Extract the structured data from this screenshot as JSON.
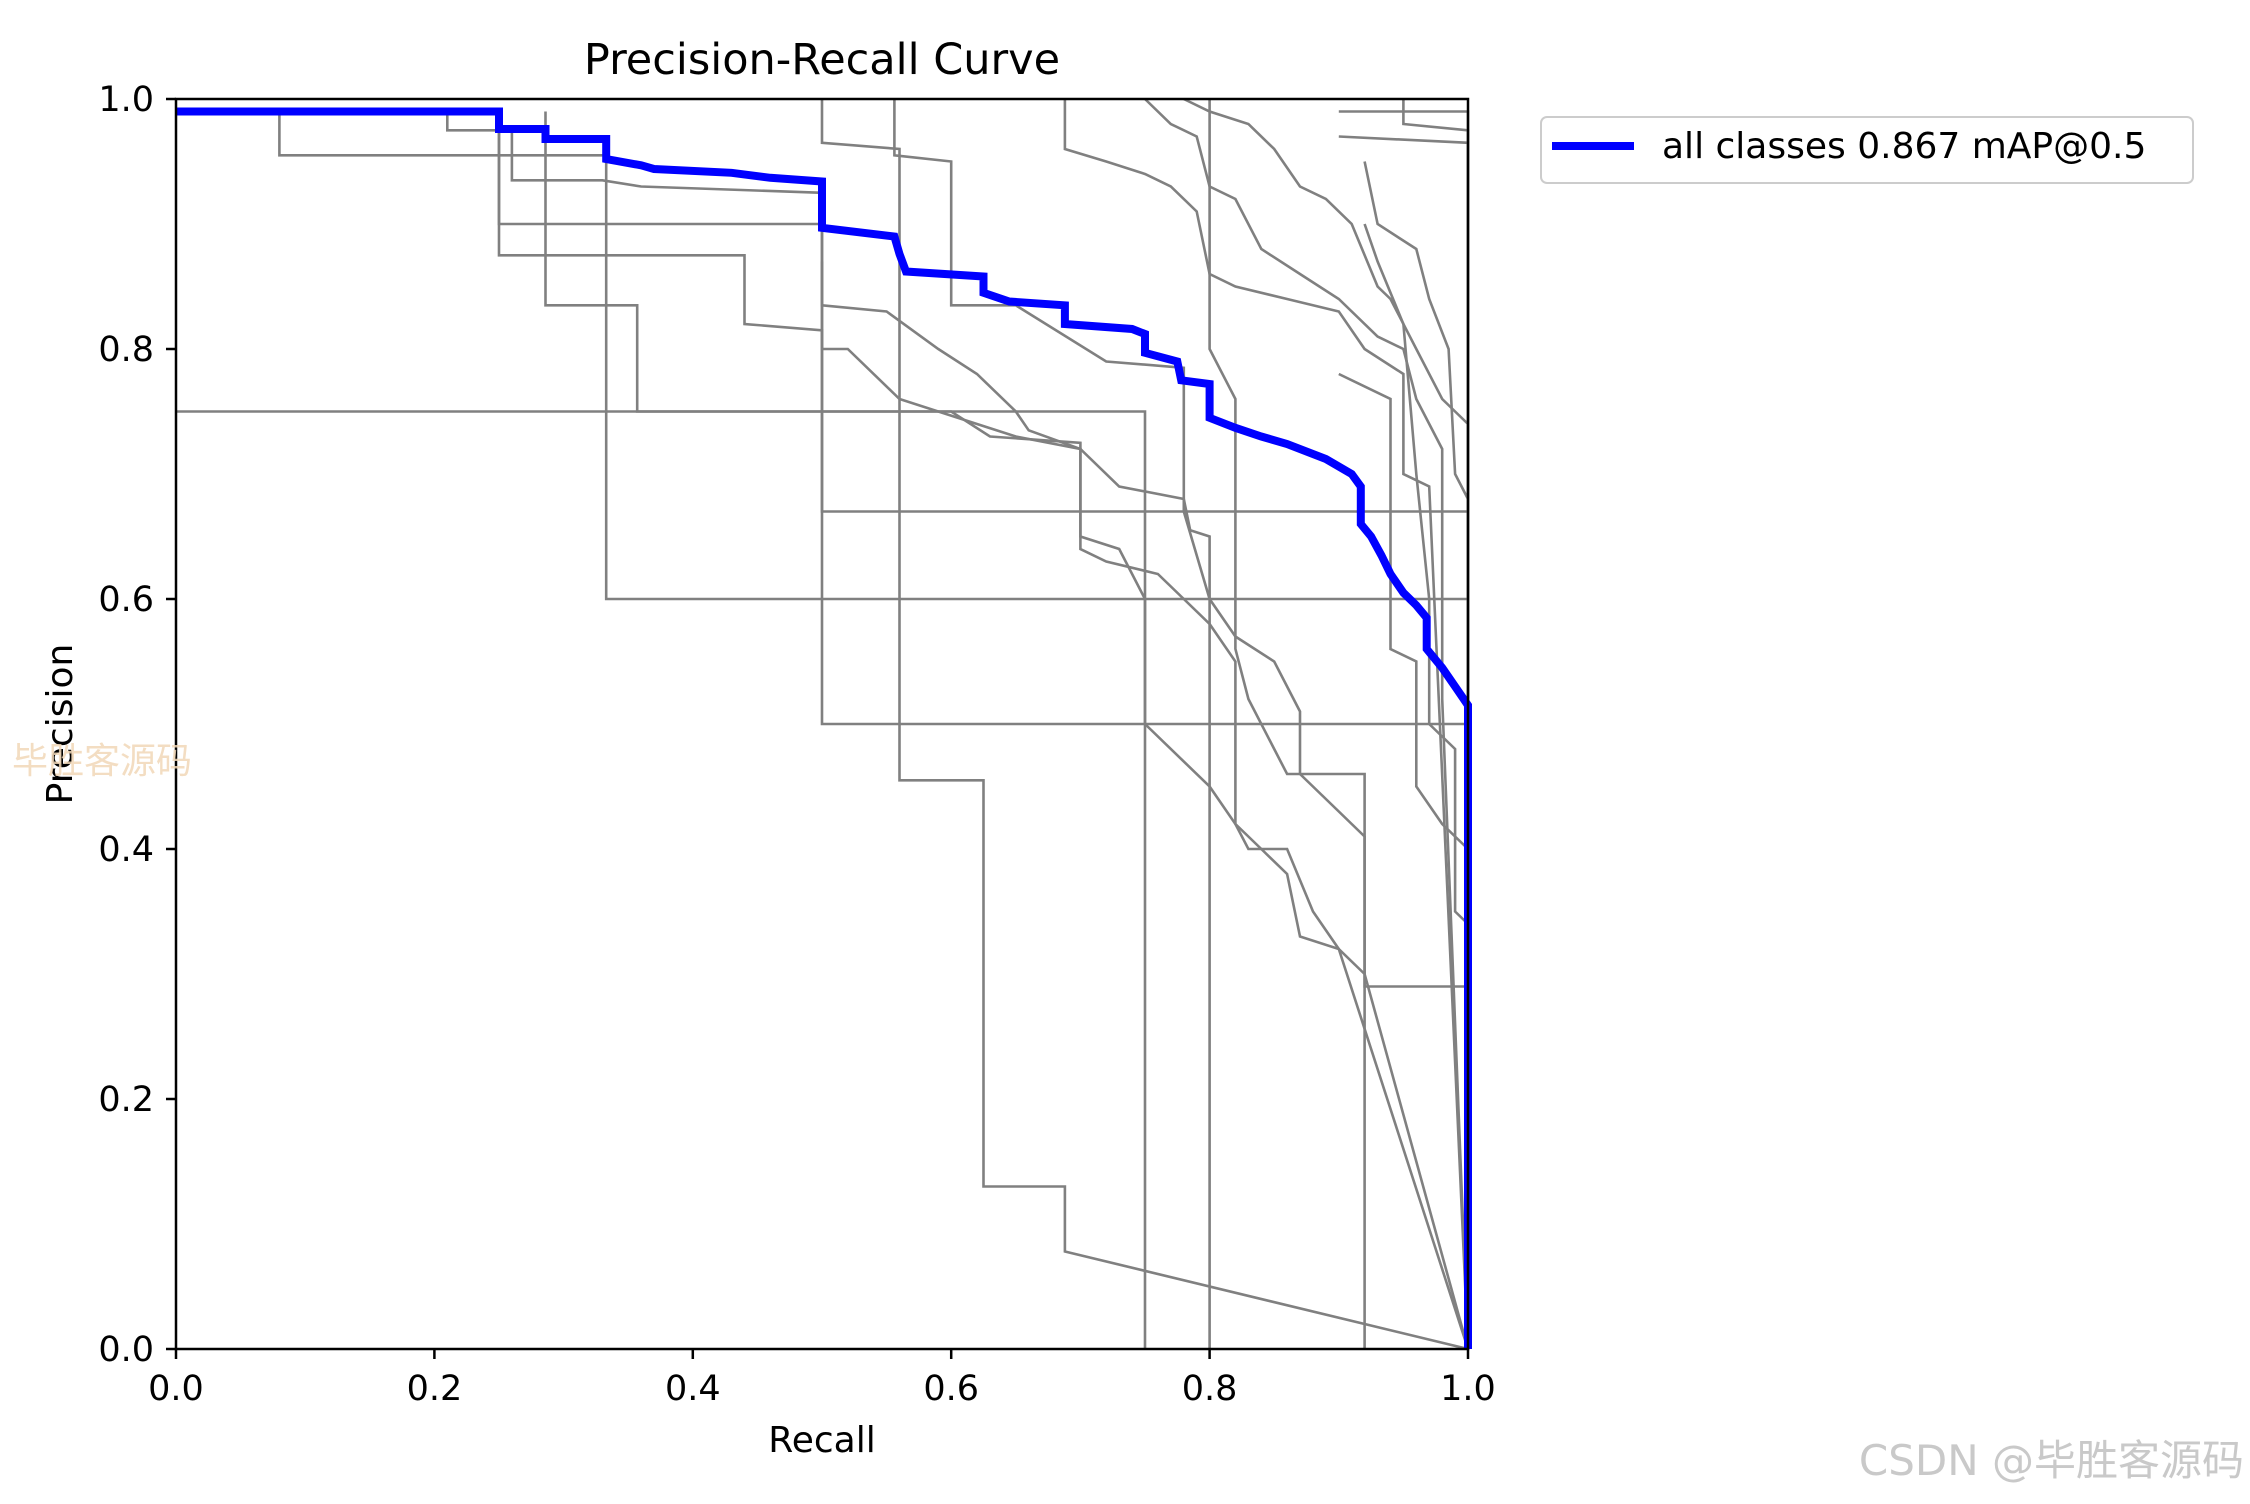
{
  "chart_data": {
    "type": "line",
    "title": "Precision-Recall Curve",
    "xlabel": "Recall",
    "ylabel": "Precision",
    "xlim": [
      0,
      1
    ],
    "ylim": [
      0,
      1
    ],
    "x_ticks": [
      "0.0",
      "0.2",
      "0.4",
      "0.6",
      "0.8",
      "1.0"
    ],
    "y_ticks": [
      "0.0",
      "0.2",
      "0.4",
      "0.6",
      "0.8",
      "1.0"
    ],
    "grid": false,
    "legend": {
      "position": "outside-top-right",
      "entries": [
        "all classes 0.867 mAP@0.5"
      ]
    },
    "main_series": {
      "name": "all classes 0.867 mAP@0.5",
      "color": "#0000ff",
      "points": [
        [
          0.0,
          0.99
        ],
        [
          0.25,
          0.99
        ],
        [
          0.25,
          0.976
        ],
        [
          0.286,
          0.976
        ],
        [
          0.286,
          0.968
        ],
        [
          0.333,
          0.968
        ],
        [
          0.333,
          0.952
        ],
        [
          0.36,
          0.947
        ],
        [
          0.37,
          0.944
        ],
        [
          0.43,
          0.941
        ],
        [
          0.46,
          0.937
        ],
        [
          0.5,
          0.934
        ],
        [
          0.5,
          0.897
        ],
        [
          0.556,
          0.89
        ],
        [
          0.56,
          0.876
        ],
        [
          0.565,
          0.862
        ],
        [
          0.625,
          0.858
        ],
        [
          0.625,
          0.845
        ],
        [
          0.645,
          0.838
        ],
        [
          0.688,
          0.835
        ],
        [
          0.688,
          0.82
        ],
        [
          0.74,
          0.816
        ],
        [
          0.75,
          0.812
        ],
        [
          0.75,
          0.797
        ],
        [
          0.775,
          0.79
        ],
        [
          0.778,
          0.775
        ],
        [
          0.8,
          0.772
        ],
        [
          0.8,
          0.745
        ],
        [
          0.82,
          0.737
        ],
        [
          0.84,
          0.73
        ],
        [
          0.86,
          0.724
        ],
        [
          0.89,
          0.712
        ],
        [
          0.91,
          0.7
        ],
        [
          0.917,
          0.69
        ],
        [
          0.917,
          0.66
        ],
        [
          0.925,
          0.65
        ],
        [
          0.933,
          0.635
        ],
        [
          0.94,
          0.62
        ],
        [
          0.95,
          0.605
        ],
        [
          0.96,
          0.595
        ],
        [
          0.968,
          0.585
        ],
        [
          0.968,
          0.56
        ],
        [
          0.98,
          0.545
        ],
        [
          0.99,
          0.53
        ],
        [
          1.0,
          0.515
        ],
        [
          1.0,
          0.0
        ]
      ]
    },
    "background_series": {
      "color": "#808080",
      "series": [
        [
          [
            0,
            0.99
          ],
          [
            0.08,
            0.99
          ],
          [
            0.08,
            0.955
          ],
          [
            0.333,
            0.955
          ],
          [
            0.333,
            0.6
          ],
          [
            1.0,
            0.6
          ],
          [
            1.0,
            0.0
          ]
        ],
        [
          [
            0,
            0.75
          ],
          [
            0.75,
            0.75
          ],
          [
            0.75,
            0.0
          ]
        ],
        [
          [
            0,
            0.99
          ],
          [
            0.21,
            0.99
          ],
          [
            0.21,
            0.975
          ],
          [
            0.26,
            0.975
          ],
          [
            0.26,
            0.935
          ],
          [
            0.33,
            0.935
          ],
          [
            0.36,
            0.93
          ],
          [
            0.5,
            0.925
          ],
          [
            0.5,
            0.5
          ],
          [
            1.0,
            0.5
          ],
          [
            1.0,
            0.0
          ]
        ],
        [
          [
            0.25,
            0.99
          ],
          [
            0.25,
            0.9
          ],
          [
            0.5,
            0.9
          ],
          [
            0.5,
            0.835
          ],
          [
            0.55,
            0.83
          ],
          [
            0.59,
            0.8
          ],
          [
            0.62,
            0.78
          ],
          [
            0.65,
            0.75
          ],
          [
            0.66,
            0.735
          ],
          [
            0.7,
            0.72
          ],
          [
            0.73,
            0.69
          ],
          [
            0.78,
            0.68
          ],
          [
            0.785,
            0.655
          ],
          [
            0.8,
            0.65
          ],
          [
            0.8,
            0.0
          ]
        ],
        [
          [
            0.25,
            0.99
          ],
          [
            0.25,
            0.875
          ],
          [
            0.44,
            0.875
          ],
          [
            0.44,
            0.82
          ],
          [
            0.5,
            0.815
          ],
          [
            0.5,
            0.67
          ],
          [
            1.0,
            0.67
          ],
          [
            1.0,
            0.0
          ]
        ],
        [
          [
            0.286,
            0.99
          ],
          [
            0.286,
            0.835
          ],
          [
            0.357,
            0.835
          ],
          [
            0.357,
            0.75
          ],
          [
            0.6,
            0.75
          ],
          [
            0.63,
            0.73
          ],
          [
            0.7,
            0.725
          ],
          [
            0.7,
            0.64
          ],
          [
            0.72,
            0.63
          ],
          [
            0.76,
            0.62
          ],
          [
            0.78,
            0.6
          ],
          [
            0.8,
            0.58
          ],
          [
            0.82,
            0.55
          ],
          [
            0.82,
            0.42
          ],
          [
            0.84,
            0.4
          ],
          [
            0.86,
            0.38
          ],
          [
            0.87,
            0.33
          ],
          [
            0.9,
            0.32
          ],
          [
            1.0,
            0.0
          ]
        ],
        [
          [
            0.5,
            1.0
          ],
          [
            0.5,
            0.965
          ],
          [
            0.56,
            0.96
          ],
          [
            0.56,
            0.455
          ],
          [
            0.625,
            0.455
          ],
          [
            0.625,
            0.13
          ],
          [
            0.688,
            0.13
          ],
          [
            0.688,
            0.078
          ],
          [
            1.0,
            0.0
          ]
        ],
        [
          [
            0.5,
            0.87
          ],
          [
            0.5,
            0.8
          ],
          [
            0.52,
            0.8
          ],
          [
            0.56,
            0.76
          ],
          [
            0.62,
            0.74
          ],
          [
            0.65,
            0.73
          ],
          [
            0.7,
            0.72
          ],
          [
            0.7,
            0.65
          ],
          [
            0.73,
            0.64
          ],
          [
            0.75,
            0.6
          ],
          [
            0.75,
            0.5
          ],
          [
            0.8,
            0.45
          ],
          [
            0.82,
            0.42
          ],
          [
            0.83,
            0.4
          ],
          [
            0.86,
            0.4
          ],
          [
            0.88,
            0.35
          ],
          [
            0.9,
            0.32
          ],
          [
            0.92,
            0.3
          ],
          [
            1.0,
            0.0
          ]
        ],
        [
          [
            0.556,
            1.0
          ],
          [
            0.556,
            0.955
          ],
          [
            0.6,
            0.95
          ],
          [
            0.6,
            0.835
          ],
          [
            0.65,
            0.835
          ],
          [
            0.72,
            0.79
          ],
          [
            0.78,
            0.785
          ],
          [
            0.78,
            0.67
          ],
          [
            0.8,
            0.6
          ],
          [
            0.82,
            0.57
          ],
          [
            0.85,
            0.55
          ],
          [
            0.87,
            0.51
          ],
          [
            0.87,
            0.46
          ],
          [
            0.9,
            0.43
          ],
          [
            0.92,
            0.41
          ],
          [
            0.92,
            0.0
          ]
        ],
        [
          [
            0.688,
            1.0
          ],
          [
            0.688,
            0.96
          ],
          [
            0.72,
            0.95
          ],
          [
            0.75,
            0.94
          ],
          [
            0.77,
            0.93
          ],
          [
            0.79,
            0.91
          ],
          [
            0.8,
            0.86
          ],
          [
            0.82,
            0.85
          ],
          [
            0.86,
            0.84
          ],
          [
            0.9,
            0.83
          ],
          [
            0.92,
            0.8
          ],
          [
            0.95,
            0.78
          ],
          [
            0.95,
            0.7
          ],
          [
            0.97,
            0.69
          ],
          [
            1.0,
            0.0
          ]
        ],
        [
          [
            0.75,
            1.0
          ],
          [
            0.77,
            0.98
          ],
          [
            0.79,
            0.97
          ],
          [
            0.8,
            0.93
          ],
          [
            0.82,
            0.92
          ],
          [
            0.84,
            0.88
          ],
          [
            0.87,
            0.86
          ],
          [
            0.9,
            0.84
          ],
          [
            0.93,
            0.81
          ],
          [
            0.95,
            0.8
          ],
          [
            0.96,
            0.76
          ],
          [
            0.98,
            0.72
          ],
          [
            0.98,
            0.52
          ],
          [
            1.0,
            0.0
          ]
        ],
        [
          [
            0.78,
            1.0
          ],
          [
            0.8,
            0.99
          ],
          [
            0.83,
            0.98
          ],
          [
            0.85,
            0.96
          ],
          [
            0.87,
            0.93
          ],
          [
            0.89,
            0.92
          ],
          [
            0.91,
            0.9
          ],
          [
            0.93,
            0.85
          ],
          [
            0.94,
            0.84
          ],
          [
            0.96,
            0.8
          ],
          [
            0.98,
            0.76
          ],
          [
            1.0,
            0.74
          ],
          [
            1.0,
            0.0
          ]
        ],
        [
          [
            0.8,
            1.0
          ],
          [
            0.8,
            0.8
          ],
          [
            0.82,
            0.76
          ],
          [
            0.82,
            0.56
          ],
          [
            0.83,
            0.52
          ],
          [
            0.85,
            0.48
          ],
          [
            0.86,
            0.46
          ],
          [
            0.92,
            0.46
          ],
          [
            0.92,
            0.29
          ],
          [
            1.0,
            0.29
          ],
          [
            1.0,
            0.0
          ]
        ],
        [
          [
            0.9,
            0.97
          ],
          [
            1.0,
            0.965
          ],
          [
            1.0,
            0.0
          ]
        ],
        [
          [
            0.95,
            1.0
          ],
          [
            0.95,
            0.98
          ],
          [
            1.0,
            0.975
          ],
          [
            1.0,
            0.0
          ]
        ],
        [
          [
            0.9,
            0.99
          ],
          [
            1.0,
            0.99
          ],
          [
            1.0,
            0.0
          ]
        ],
        [
          [
            0.92,
            0.95
          ],
          [
            0.93,
            0.9
          ],
          [
            0.96,
            0.88
          ],
          [
            0.97,
            0.84
          ],
          [
            0.985,
            0.8
          ],
          [
            0.99,
            0.7
          ],
          [
            1.0,
            0.68
          ],
          [
            1.0,
            0.0
          ]
        ],
        [
          [
            0.9,
            0.78
          ],
          [
            0.94,
            0.76
          ],
          [
            0.94,
            0.56
          ],
          [
            0.96,
            0.55
          ],
          [
            0.96,
            0.45
          ],
          [
            0.98,
            0.42
          ],
          [
            1.0,
            0.4
          ],
          [
            1.0,
            0.0
          ]
        ],
        [
          [
            0.92,
            0.9
          ],
          [
            0.93,
            0.87
          ],
          [
            0.95,
            0.82
          ],
          [
            0.96,
            0.7
          ],
          [
            0.97,
            0.6
          ],
          [
            0.97,
            0.5
          ],
          [
            0.99,
            0.48
          ],
          [
            0.99,
            0.35
          ],
          [
            1.0,
            0.34
          ],
          [
            1.0,
            0.0
          ]
        ]
      ]
    }
  },
  "watermarks": {
    "left": "毕胜客源码",
    "bottom": "CSDN @毕胜客源码"
  }
}
